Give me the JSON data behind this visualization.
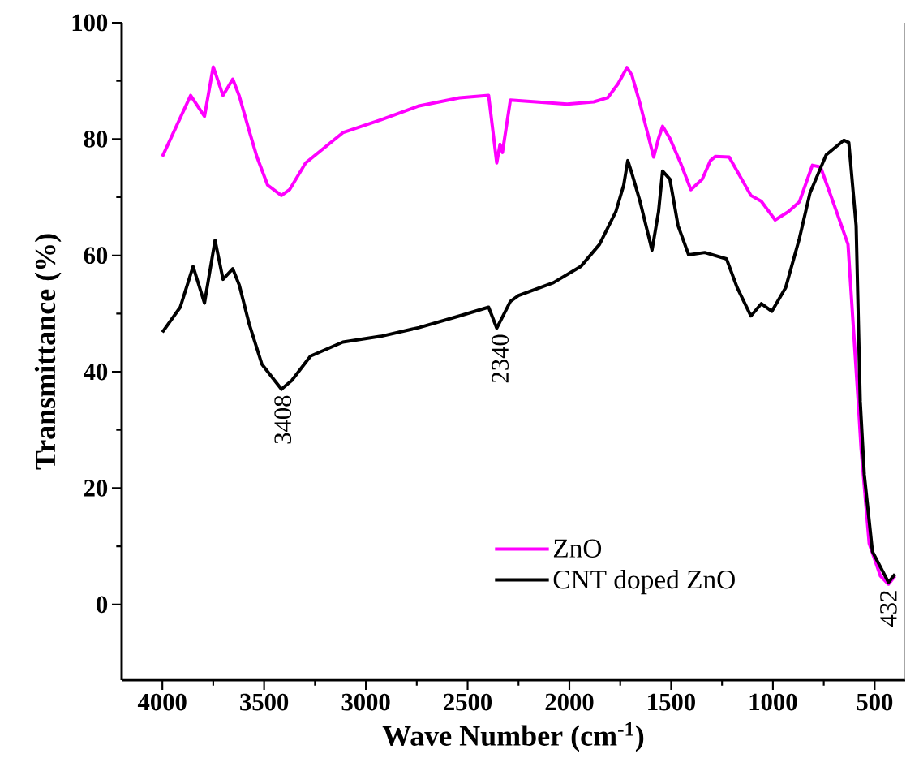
{
  "chart_data": {
    "type": "line",
    "xlabel": "Wave Number (cm$^{-1}$)",
    "ylabel": "Transmittance (%)",
    "xlim": [
      4200,
      350
    ],
    "ylim": [
      -13,
      100
    ],
    "xticks": [
      4000,
      3500,
      3000,
      2500,
      2000,
      1500,
      1000,
      500
    ],
    "yticks": [
      0,
      20,
      40,
      60,
      80,
      100
    ],
    "grid": false,
    "legend": "bottom",
    "marker": "none",
    "line_style": "solid",
    "annotations": [
      {
        "text": "3408",
        "x": 3408,
        "y": 37
      },
      {
        "text": "2340",
        "x": 2340,
        "y": 47.5
      },
      {
        "text": "432",
        "x": 432,
        "y": 3.5
      }
    ],
    "series": [
      {
        "name": "ZnO",
        "color": "#ff00ff",
        "x": [
          4000,
          3861,
          3793,
          3750,
          3702,
          3654,
          3622,
          3574,
          3535,
          3483,
          3415,
          3375,
          3296,
          3113,
          2926,
          2739,
          2540,
          2397,
          2357,
          2341,
          2329,
          2290,
          2011,
          1880,
          1812,
          1761,
          1717,
          1693,
          1653,
          1586,
          1562,
          1542,
          1506,
          1454,
          1403,
          1347,
          1307,
          1283,
          1215,
          1108,
          1057,
          989,
          925,
          870,
          806,
          766,
          687,
          631,
          607,
          579,
          567,
          527,
          472,
          432,
          400
        ],
        "values": [
          77.0,
          87.5,
          83.9,
          92.4,
          87.5,
          90.3,
          87.4,
          81.5,
          76.9,
          72.1,
          70.3,
          71.3,
          75.9,
          81.1,
          83.3,
          85.7,
          87.1,
          87.5,
          75.9,
          79.1,
          77.7,
          86.7,
          86.0,
          86.4,
          87.1,
          89.5,
          92.3,
          91.0,
          86.1,
          76.9,
          80.1,
          82.2,
          80.1,
          75.9,
          71.3,
          73.1,
          76.3,
          77.0,
          76.9,
          70.3,
          69.3,
          66.1,
          67.5,
          69.2,
          75.5,
          75.2,
          67.5,
          61.9,
          48.9,
          33.9,
          26.9,
          10.5,
          4.9,
          3.5,
          4.9
        ]
      },
      {
        "name": "CNT doped ZnO",
        "color": "#000000",
        "x": [
          4000,
          3912,
          3849,
          3793,
          3741,
          3702,
          3654,
          3622,
          3574,
          3511,
          3415,
          3364,
          3272,
          3113,
          2926,
          2739,
          2540,
          2397,
          2357,
          2290,
          2250,
          2079,
          1944,
          1852,
          1772,
          1733,
          1713,
          1693,
          1653,
          1594,
          1562,
          1542,
          1506,
          1466,
          1414,
          1335,
          1228,
          1176,
          1108,
          1057,
          1005,
          937,
          870,
          818,
          738,
          651,
          627,
          591,
          571,
          551,
          511,
          432,
          400
        ],
        "values": [
          46.8,
          51.1,
          58.1,
          51.8,
          62.6,
          55.9,
          57.7,
          54.9,
          48.3,
          41.3,
          37.0,
          38.5,
          42.7,
          45.1,
          46.1,
          47.6,
          49.6,
          51.1,
          47.5,
          52.1,
          53.1,
          55.3,
          58.1,
          61.9,
          67.5,
          72.1,
          76.3,
          74.1,
          69.3,
          60.9,
          67.5,
          74.5,
          73.1,
          65.1,
          60.1,
          60.5,
          59.4,
          54.5,
          49.6,
          51.7,
          50.4,
          54.5,
          62.9,
          70.7,
          77.3,
          79.8,
          79.4,
          65.1,
          34.9,
          22.3,
          9.1,
          3.8,
          5.2
        ]
      }
    ]
  }
}
